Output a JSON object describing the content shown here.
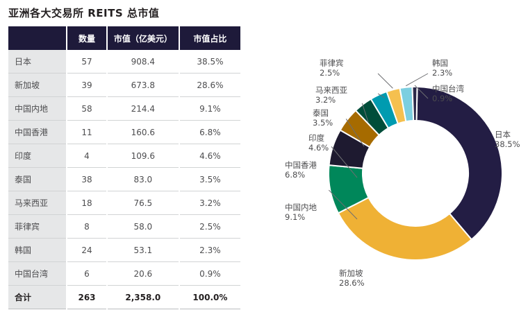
{
  "title": "亚洲各大交易所 REITS 总市值",
  "table": {
    "headers": [
      "",
      "数量",
      "市值（亿美元）",
      "市值占比"
    ],
    "rows": [
      [
        "日本",
        "57",
        "908.4",
        "38.5%"
      ],
      [
        "新加坡",
        "39",
        "673.8",
        "28.6%"
      ],
      [
        "中国内地",
        "58",
        "214.4",
        "9.1%"
      ],
      [
        "中国香港",
        "11",
        "160.6",
        "6.8%"
      ],
      [
        "印度",
        "4",
        "109.6",
        "4.6%"
      ],
      [
        "泰国",
        "38",
        "83.0",
        "3.5%"
      ],
      [
        "马来西亚",
        "18",
        "76.5",
        "3.2%"
      ],
      [
        "菲律宾",
        "8",
        "58.0",
        "2.5%"
      ],
      [
        "韩国",
        "24",
        "53.1",
        "2.3%"
      ],
      [
        "中国台湾",
        "6",
        "20.6",
        "0.9%"
      ]
    ],
    "total": [
      "合计",
      "263",
      "2,358.0",
      "100.0%"
    ]
  },
  "chart_data": {
    "type": "pie",
    "donut": true,
    "slices": [
      {
        "name": "日本",
        "value": 38.5,
        "label": "38.5%",
        "color": "#231d44"
      },
      {
        "name": "新加坡",
        "value": 28.6,
        "label": "28.6%",
        "color": "#efb135"
      },
      {
        "name": "中国内地",
        "value": 9.1,
        "label": "9.1%",
        "color": "#00875a"
      },
      {
        "name": "中国香港",
        "value": 6.8,
        "label": "6.8%",
        "color": "#1e1a30"
      },
      {
        "name": "印度",
        "value": 4.6,
        "label": "4.6%",
        "color": "#a66b00"
      },
      {
        "name": "泰国",
        "value": 3.5,
        "label": "3.5%",
        "color": "#004d3a"
      },
      {
        "name": "马来西亚",
        "value": 3.2,
        "label": "3.2%",
        "color": "#009bb0"
      },
      {
        "name": "菲律宾",
        "value": 2.5,
        "label": "2.5%",
        "color": "#f5c04f"
      },
      {
        "name": "韩国",
        "value": 2.3,
        "label": "2.3%",
        "color": "#7ccfe0"
      },
      {
        "name": "中国台湾",
        "value": 0.9,
        "label": "0.9%",
        "color": "#2c2a4a"
      }
    ]
  }
}
